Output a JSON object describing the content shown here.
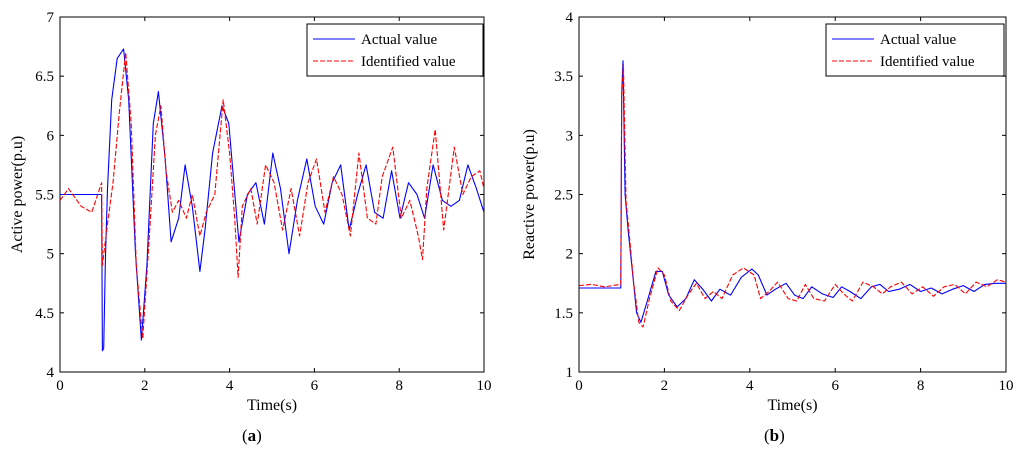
{
  "chart_data": [
    {
      "type": "line",
      "panel_label": "a",
      "xlabel": "Time(s)",
      "ylabel": "Active power(p.u)",
      "xlim": [
        0,
        10
      ],
      "ylim": [
        4,
        7
      ],
      "xticks": [
        0,
        2,
        4,
        6,
        8,
        10
      ],
      "xtick_labels": [
        "0",
        "2",
        "4",
        "6",
        "8",
        "10"
      ],
      "yticks": [
        4,
        4.5,
        5,
        5.5,
        6,
        6.5,
        7
      ],
      "ytick_labels": [
        "4",
        "4.5",
        "5",
        "5.5",
        "6",
        "6.5",
        "7"
      ],
      "legend_position": "top-right",
      "series": [
        {
          "name": "Actual value",
          "color": "#0000ff",
          "style": "solid",
          "x": [
            0,
            0.5,
            0.98,
            1.0,
            1.03,
            1.07,
            1.12,
            1.22,
            1.35,
            1.5,
            1.62,
            1.78,
            1.92,
            2.05,
            2.2,
            2.32,
            2.48,
            2.62,
            2.8,
            2.95,
            3.12,
            3.3,
            3.42,
            3.6,
            3.82,
            3.98,
            4.22,
            4.42,
            4.62,
            4.82,
            5.02,
            5.2,
            5.4,
            5.6,
            5.82,
            6.02,
            6.22,
            6.42,
            6.62,
            6.82,
            7.02,
            7.22,
            7.42,
            7.62,
            7.82,
            8.02,
            8.22,
            8.42,
            8.6,
            8.8,
            9.02,
            9.22,
            9.42,
            9.62,
            9.82,
            10.0
          ],
          "y": [
            5.5,
            5.5,
            5.5,
            4.18,
            4.2,
            4.95,
            5.55,
            6.3,
            6.65,
            6.73,
            6.3,
            5.0,
            4.27,
            4.9,
            6.1,
            6.37,
            5.8,
            5.1,
            5.3,
            5.75,
            5.4,
            4.85,
            5.2,
            5.85,
            6.25,
            6.1,
            5.1,
            5.5,
            5.6,
            5.25,
            5.85,
            5.55,
            5.0,
            5.45,
            5.8,
            5.4,
            5.25,
            5.6,
            5.75,
            5.2,
            5.5,
            5.75,
            5.35,
            5.3,
            5.7,
            5.3,
            5.6,
            5.5,
            5.3,
            5.75,
            5.45,
            5.4,
            5.45,
            5.75,
            5.55,
            5.35
          ]
        },
        {
          "name": "Identified value",
          "color": "#ff0000",
          "style": "dashed",
          "x": [
            0,
            0.2,
            0.5,
            0.75,
            0.98,
            1.0,
            1.05,
            1.12,
            1.25,
            1.4,
            1.55,
            1.68,
            1.8,
            1.95,
            2.1,
            2.25,
            2.38,
            2.5,
            2.65,
            2.8,
            2.98,
            3.12,
            3.3,
            3.45,
            3.65,
            3.85,
            4.0,
            4.12,
            4.2,
            4.3,
            4.5,
            4.65,
            4.85,
            5.05,
            5.25,
            5.45,
            5.65,
            5.85,
            6.05,
            6.25,
            6.45,
            6.65,
            6.85,
            7.05,
            7.25,
            7.45,
            7.6,
            7.85,
            8.05,
            8.25,
            8.45,
            8.55,
            8.65,
            8.85,
            9.05,
            9.3,
            9.5,
            9.7,
            9.9,
            10.0
          ],
          "y": [
            5.45,
            5.55,
            5.4,
            5.35,
            5.6,
            4.9,
            5.05,
            5.25,
            5.6,
            6.2,
            6.7,
            6.1,
            4.9,
            4.28,
            5.1,
            6.0,
            6.25,
            5.7,
            5.35,
            5.45,
            5.3,
            5.5,
            5.15,
            5.35,
            5.5,
            6.3,
            5.85,
            5.3,
            4.8,
            5.4,
            5.55,
            5.25,
            5.75,
            5.6,
            5.2,
            5.55,
            5.15,
            5.6,
            5.8,
            5.35,
            5.65,
            5.5,
            5.15,
            5.85,
            5.3,
            5.25,
            5.65,
            5.9,
            5.3,
            5.45,
            5.15,
            4.95,
            5.55,
            6.05,
            5.2,
            5.9,
            5.5,
            5.65,
            5.7,
            5.55
          ]
        }
      ]
    },
    {
      "type": "line",
      "panel_label": "b",
      "xlabel": "Time(s)",
      "ylabel": "Reactive power(p.u)",
      "xlim": [
        0,
        10
      ],
      "ylim": [
        1,
        4
      ],
      "xticks": [
        0,
        2,
        4,
        6,
        8,
        10
      ],
      "xtick_labels": [
        "0",
        "2",
        "4",
        "6",
        "8",
        "10"
      ],
      "yticks": [
        1,
        1.5,
        2,
        2.5,
        3,
        3.5,
        4
      ],
      "ytick_labels": [
        "1",
        "1.5",
        "2",
        "2.5",
        "3",
        "3.5",
        "4"
      ],
      "legend_position": "top-right",
      "series": [
        {
          "name": "Actual value",
          "color": "#0000ff",
          "style": "solid",
          "x": [
            0,
            0.5,
            0.98,
            1.0,
            1.03,
            1.08,
            1.15,
            1.25,
            1.35,
            1.45,
            1.6,
            1.8,
            1.95,
            2.1,
            2.3,
            2.5,
            2.7,
            2.9,
            3.1,
            3.3,
            3.55,
            3.8,
            4.05,
            4.2,
            4.4,
            4.6,
            4.85,
            5.05,
            5.25,
            5.45,
            5.7,
            5.95,
            6.15,
            6.35,
            6.6,
            6.85,
            7.05,
            7.25,
            7.5,
            7.75,
            8.0,
            8.25,
            8.5,
            8.75,
            9.0,
            9.25,
            9.5,
            9.75,
            10.0
          ],
          "y": [
            1.71,
            1.71,
            1.71,
            3.35,
            3.63,
            2.5,
            2.2,
            1.85,
            1.5,
            1.42,
            1.6,
            1.85,
            1.85,
            1.65,
            1.55,
            1.62,
            1.78,
            1.7,
            1.6,
            1.7,
            1.65,
            1.8,
            1.87,
            1.82,
            1.65,
            1.7,
            1.75,
            1.65,
            1.62,
            1.72,
            1.66,
            1.63,
            1.72,
            1.68,
            1.62,
            1.72,
            1.74,
            1.68,
            1.7,
            1.74,
            1.68,
            1.71,
            1.66,
            1.7,
            1.73,
            1.68,
            1.74,
            1.75,
            1.75
          ]
        },
        {
          "name": "Identified value",
          "color": "#ff0000",
          "style": "dashed",
          "x": [
            0,
            0.3,
            0.6,
            0.98,
            1.0,
            1.04,
            1.1,
            1.18,
            1.28,
            1.4,
            1.5,
            1.65,
            1.85,
            2.0,
            2.15,
            2.35,
            2.55,
            2.75,
            2.95,
            3.15,
            3.35,
            3.6,
            3.85,
            4.1,
            4.25,
            4.45,
            4.65,
            4.9,
            5.1,
            5.3,
            5.5,
            5.75,
            6.0,
            6.2,
            6.4,
            6.65,
            6.9,
            7.1,
            7.3,
            7.55,
            7.8,
            8.05,
            8.3,
            8.55,
            8.8,
            9.05,
            9.3,
            9.55,
            9.8,
            10.0
          ],
          "y": [
            1.73,
            1.74,
            1.72,
            1.74,
            3.3,
            3.6,
            2.45,
            2.15,
            1.75,
            1.42,
            1.38,
            1.62,
            1.88,
            1.82,
            1.6,
            1.52,
            1.65,
            1.75,
            1.62,
            1.68,
            1.62,
            1.82,
            1.88,
            1.82,
            1.62,
            1.68,
            1.76,
            1.62,
            1.6,
            1.74,
            1.62,
            1.6,
            1.74,
            1.66,
            1.6,
            1.76,
            1.72,
            1.66,
            1.72,
            1.76,
            1.66,
            1.72,
            1.64,
            1.72,
            1.74,
            1.66,
            1.76,
            1.72,
            1.78,
            1.76
          ]
        }
      ]
    }
  ]
}
